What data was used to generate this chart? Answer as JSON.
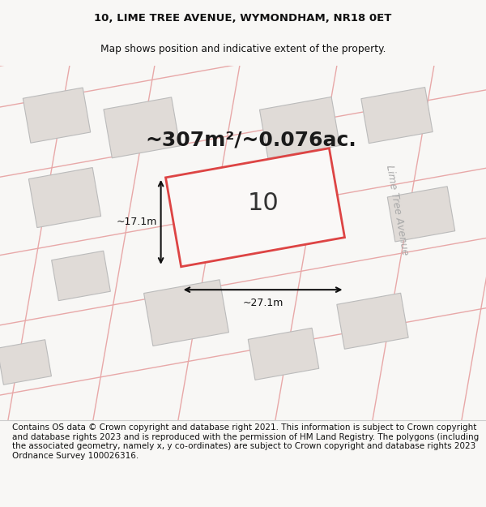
{
  "title_line1": "10, LIME TREE AVENUE, WYMONDHAM, NR18 0ET",
  "title_line2": "Map shows position and indicative extent of the property.",
  "area_text": "~307m²/~0.076ac.",
  "label_number": "10",
  "dim_width": "~27.1m",
  "dim_height": "~17.1m",
  "street_label": "Lime Tree Avenue",
  "footer_text": "Contains OS data © Crown copyright and database right 2021. This information is subject to Crown copyright and database rights 2023 and is reproduced with the permission of HM Land Registry. The polygons (including the associated geometry, namely x, y co-ordinates) are subject to Crown copyright and database rights 2023 Ordnance Survey 100026316.",
  "bg_color": "#f8f7f5",
  "map_bg": "#f2eeeb",
  "red_line_color": "#d44",
  "neighbor_fill": "#e0dbd7",
  "neighbor_ec": "#bbbbbb",
  "road_color": "#e8a8a8",
  "title_fontsize": 9.5,
  "subtitle_fontsize": 8.8,
  "footer_fontsize": 7.5,
  "area_fontsize": 18,
  "plot_label_fontsize": 22,
  "dim_fontsize": 9,
  "street_fontsize": 9,
  "ang": 10
}
